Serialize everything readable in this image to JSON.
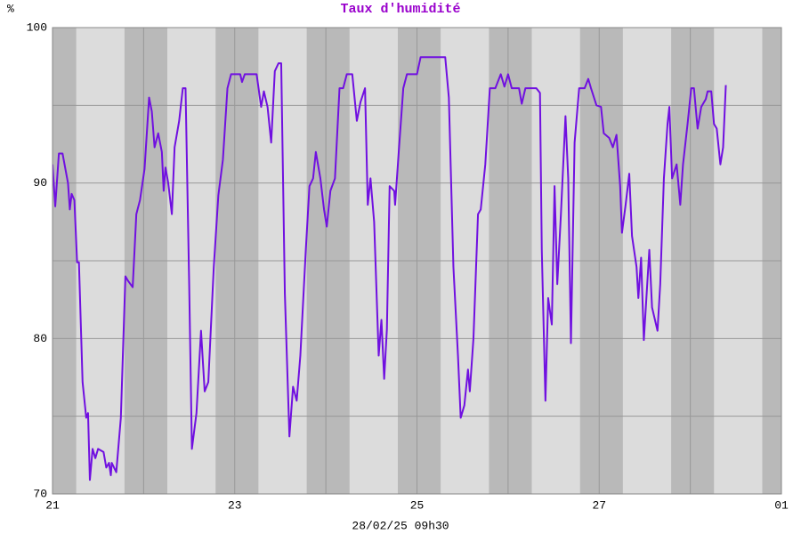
{
  "chart_data": {
    "type": "line",
    "title": "Taux d'humidité",
    "ylabel": "%",
    "subtitle": "28/02/25 09h30",
    "title_color": "#9900cc",
    "xlim": [
      0,
      8
    ],
    "xticks": [
      {
        "value": 0,
        "label": "21"
      },
      {
        "value": 2,
        "label": "23"
      },
      {
        "value": 4,
        "label": "25"
      },
      {
        "value": 6,
        "label": "27"
      },
      {
        "value": 8,
        "label": "01"
      }
    ],
    "minor_xticks": [
      1,
      3,
      5,
      7
    ],
    "ylim": [
      70,
      100
    ],
    "yticks": [
      70,
      80,
      90,
      100
    ],
    "minor_yticks": [
      75,
      85,
      95
    ],
    "grid": true,
    "shaded_ranges": [
      [
        -0.21,
        0.26
      ],
      [
        0.79,
        1.26
      ],
      [
        1.79,
        2.26
      ],
      [
        2.79,
        3.26
      ],
      [
        3.79,
        4.26
      ],
      [
        4.79,
        5.26
      ],
      [
        5.79,
        6.26
      ],
      [
        6.79,
        7.26
      ],
      [
        7.79,
        8.26
      ]
    ],
    "shade_color": "#b9b9b9",
    "background_color": "#dcdcdc",
    "series": [
      {
        "name": "Taux d'humidité",
        "color": "#7010e0",
        "x": [
          0,
          0.03,
          0.07,
          0.11,
          0.17,
          0.19,
          0.21,
          0.24,
          0.27,
          0.29,
          0.33,
          0.37,
          0.39,
          0.41,
          0.44,
          0.47,
          0.5,
          0.56,
          0.59,
          0.62,
          0.64,
          0.65,
          0.7,
          0.75,
          0.8,
          0.83,
          0.88,
          0.92,
          0.96,
          1.01,
          1.06,
          1.09,
          1.12,
          1.16,
          1.2,
          1.22,
          1.24,
          1.27,
          1.31,
          1.34,
          1.39,
          1.43,
          1.46,
          1.5,
          1.53,
          1.58,
          1.63,
          1.67,
          1.71,
          1.77,
          1.82,
          1.87,
          1.92,
          1.96,
          2.06,
          2.08,
          2.11,
          2.24,
          2.29,
          2.32,
          2.36,
          2.4,
          2.44,
          2.48,
          2.51,
          2.55,
          2.6,
          2.64,
          2.68,
          2.72,
          2.78,
          2.82,
          2.86,
          2.89,
          2.94,
          2.98,
          3.01,
          3.05,
          3.1,
          3.15,
          3.19,
          3.23,
          3.29,
          3.34,
          3.38,
          3.43,
          3.46,
          3.49,
          3.53,
          3.58,
          3.61,
          3.64,
          3.67,
          3.7,
          3.75,
          3.76,
          3.8,
          3.85,
          3.89,
          4.0,
          4.04,
          4.31,
          4.35,
          4.4,
          4.45,
          4.48,
          4.52,
          4.56,
          4.58,
          4.62,
          4.67,
          4.7,
          4.75,
          4.8,
          4.86,
          4.92,
          4.96,
          5.0,
          5.04,
          5.12,
          5.15,
          5.19,
          5.31,
          5.35,
          5.37,
          5.41,
          5.44,
          5.48,
          5.51,
          5.54,
          5.58,
          5.63,
          5.66,
          5.69,
          5.73,
          5.78,
          5.84,
          5.88,
          5.91,
          5.97,
          6.02,
          6.05,
          6.11,
          6.15,
          6.19,
          6.23,
          6.25,
          6.29,
          6.33,
          6.36,
          6.41,
          6.43,
          6.46,
          6.49,
          6.55,
          6.58,
          6.64,
          6.67,
          6.71,
          6.75,
          6.77,
          6.8,
          6.85,
          6.89,
          6.92,
          6.97,
          7.01,
          7.04,
          7.08,
          7.12,
          7.17,
          7.19,
          7.23,
          7.26,
          7.29,
          7.33,
          7.36,
          7.39
        ],
        "values": [
          91.2,
          88.5,
          91.9,
          91.9,
          90.0,
          88.3,
          89.3,
          88.9,
          84.9,
          84.9,
          77.2,
          74.9,
          75.2,
          70.9,
          72.9,
          72.3,
          72.9,
          72.7,
          71.7,
          72.0,
          71.2,
          72.0,
          71.4,
          74.9,
          84.0,
          83.7,
          83.3,
          88.0,
          88.9,
          90.9,
          95.5,
          94.6,
          92.3,
          93.2,
          92.0,
          89.5,
          91.0,
          90.0,
          88.0,
          92.3,
          94.0,
          96.1,
          96.1,
          83.5,
          72.9,
          75.2,
          80.5,
          76.6,
          77.2,
          84.6,
          89.2,
          91.5,
          96.1,
          97.0,
          97.0,
          96.5,
          97.0,
          97.0,
          94.9,
          95.9,
          94.9,
          92.6,
          97.2,
          97.7,
          97.7,
          82.9,
          73.7,
          76.9,
          76.0,
          78.9,
          85.7,
          89.8,
          90.3,
          92.0,
          90.3,
          88.3,
          87.2,
          89.5,
          90.3,
          96.1,
          96.1,
          97.0,
          97.0,
          94.0,
          95.2,
          96.1,
          88.6,
          90.3,
          87.5,
          78.9,
          81.2,
          77.4,
          80.6,
          89.8,
          89.5,
          88.6,
          92.0,
          96.1,
          97.0,
          97.0,
          98.1,
          98.1,
          95.5,
          84.6,
          78.9,
          74.9,
          75.7,
          78.0,
          76.6,
          80.0,
          88.0,
          88.3,
          91.2,
          96.1,
          96.1,
          97.0,
          96.2,
          97.0,
          96.1,
          96.1,
          95.1,
          96.1,
          96.1,
          95.8,
          85.7,
          76.0,
          82.6,
          80.9,
          89.8,
          83.5,
          88.0,
          94.3,
          90.3,
          79.7,
          92.6,
          96.1,
          96.1,
          96.7,
          96.1,
          95.0,
          94.9,
          93.2,
          92.9,
          92.3,
          93.1,
          89.8,
          86.8,
          88.6,
          90.6,
          86.6,
          84.6,
          82.6,
          85.2,
          79.9,
          85.7,
          82.0,
          80.5,
          83.5,
          90.3,
          93.8,
          94.9,
          90.3,
          91.2,
          88.6,
          91.2,
          93.8,
          96.1,
          96.1,
          93.5,
          94.9,
          95.4,
          95.9,
          95.9,
          93.8,
          93.5,
          91.2,
          92.3,
          96.3
        ]
      }
    ]
  }
}
